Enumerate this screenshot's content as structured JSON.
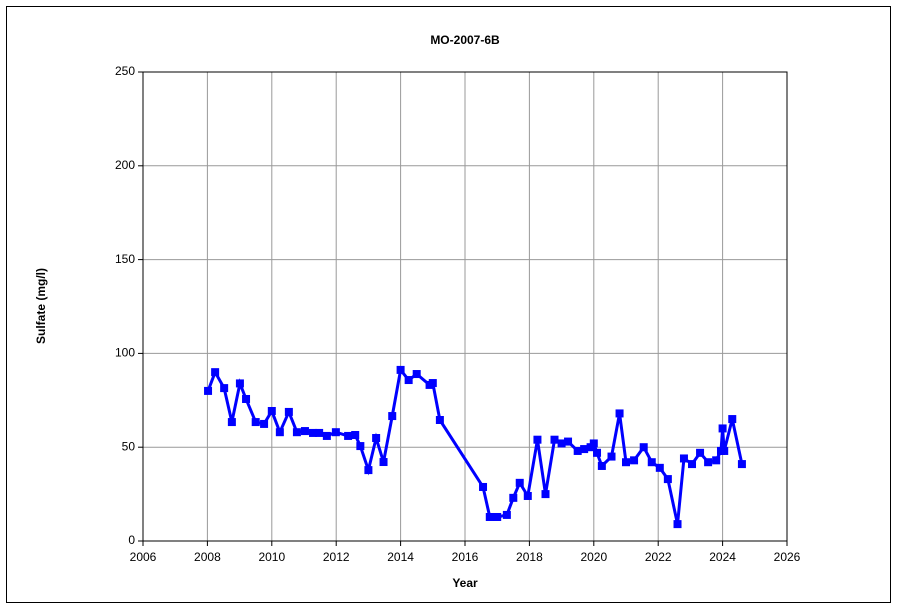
{
  "chart_data": {
    "type": "line",
    "title": "MO-2007-6B",
    "x_label": "Year",
    "y_label": "Sulfate (mg/l)",
    "color": "#0000ff",
    "grid": true,
    "xlim": [
      2006,
      2026
    ],
    "xticks": [
      2006,
      2008,
      2010,
      2012,
      2014,
      2016,
      2018,
      2020,
      2022,
      2024,
      2026
    ],
    "ylim": [
      0,
      250
    ],
    "yticks": [
      0,
      50,
      100,
      150,
      200,
      250
    ],
    "x": [
      2008.02,
      2008.24,
      2008.52,
      2008.76,
      2009.01,
      2009.2,
      2009.5,
      2009.76,
      2010.0,
      2010.25,
      2010.53,
      2010.78,
      2011.03,
      2011.28,
      2011.47,
      2011.71,
      2011.99,
      2012.37,
      2012.59,
      2012.75,
      2013.0,
      2013.24,
      2013.47,
      2013.74,
      2014.0,
      2014.25,
      2014.5,
      2014.9,
      2015.0,
      2015.22,
      2016.56,
      2016.77,
      2017.0,
      2017.3,
      2017.5,
      2017.7,
      2017.95,
      2018.25,
      2018.5,
      2018.78,
      2019.0,
      2019.2,
      2019.5,
      2019.7,
      2019.9,
      2020.0,
      2020.1,
      2020.25,
      2020.55,
      2020.8,
      2021.0,
      2021.25,
      2021.55,
      2021.8,
      2022.05,
      2022.3,
      2022.6,
      2022.8,
      2023.05,
      2023.3,
      2023.55,
      2023.8,
      2023.95,
      2024.0,
      2024.05,
      2024.3,
      2024.6
    ],
    "values": [
      80,
      90,
      81.5,
      63.4,
      84,
      75.7,
      63.4,
      62.4,
      69.3,
      58,
      68.8,
      58,
      58.6,
      57.6,
      57.6,
      56,
      58,
      56,
      56.5,
      50.6,
      37.8,
      54.9,
      42.1,
      66.6,
      91.2,
      85.8,
      89,
      83.2,
      84.2,
      64.5,
      28.8,
      12.8,
      12.8,
      13.9,
      23,
      31,
      24,
      54,
      25,
      54,
      52,
      53,
      48,
      49,
      50,
      52,
      47,
      40,
      45,
      68,
      42,
      43,
      50,
      42,
      39,
      33,
      9,
      44,
      41,
      47,
      42,
      43,
      48,
      60,
      48,
      65,
      41
    ]
  }
}
